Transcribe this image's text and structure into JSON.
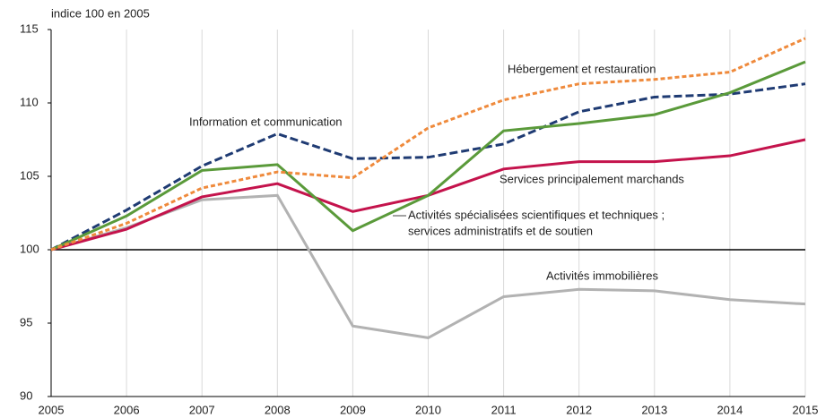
{
  "chart_data": {
    "type": "line",
    "ylabel": "indice 100 en 2005",
    "x": [
      2005,
      2006,
      2007,
      2008,
      2009,
      2010,
      2011,
      2012,
      2013,
      2014,
      2015
    ],
    "xlim": [
      2005,
      2015
    ],
    "xticks": [
      2005,
      2006,
      2007,
      2008,
      2009,
      2010,
      2011,
      2012,
      2013,
      2014,
      2015
    ],
    "ylim": [
      90,
      115
    ],
    "yticks": [
      90,
      95,
      100,
      105,
      110,
      115
    ],
    "grid": true,
    "series": [
      {
        "label_lines": [
          "Information et communication"
        ],
        "color": "#1f3b73",
        "dash": "dashed",
        "values": [
          100,
          102.7,
          105.7,
          107.9,
          106.2,
          106.3,
          107.2,
          109.4,
          110.4,
          110.6,
          111.3
        ]
      },
      {
        "label_lines": [
          "Hébergement et restauration"
        ],
        "color": "#ef8a3c",
        "dash": "dotted",
        "values": [
          100,
          101.8,
          104.2,
          105.3,
          104.9,
          108.3,
          110.2,
          111.3,
          111.6,
          112.1,
          114.4
        ]
      },
      {
        "label_lines": [
          "Activités spécialisées scientifiques et techniques ;",
          "services administratifs et de soutien"
        ],
        "color": "#5a9a3a",
        "dash": "solid",
        "values": [
          100,
          102.3,
          105.4,
          105.8,
          101.3,
          103.7,
          108.1,
          108.6,
          109.2,
          110.7,
          112.8
        ]
      },
      {
        "label_lines": [
          "Services principalement marchands"
        ],
        "color": "#c4134c",
        "dash": "solid",
        "values": [
          100,
          101.4,
          103.6,
          104.5,
          102.6,
          103.7,
          105.5,
          106.0,
          106.0,
          106.4,
          107.5
        ]
      },
      {
        "label_lines": [
          "Activités immobilières"
        ],
        "color": "#b2b2b2",
        "dash": "solid",
        "values": [
          100,
          101.5,
          103.4,
          103.7,
          94.8,
          94.0,
          96.8,
          97.3,
          97.2,
          96.6,
          96.3
        ]
      }
    ]
  }
}
